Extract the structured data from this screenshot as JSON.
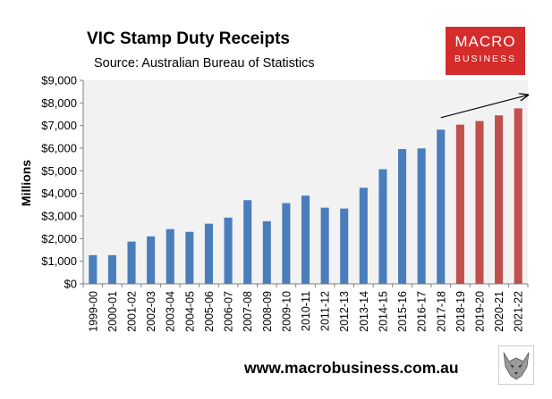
{
  "header": {
    "title": "VIC Stamp Duty Receipts",
    "source": "Source: Australian Bureau of Statistics"
  },
  "logo": {
    "line1": "MACRO",
    "line2": "BUSINESS",
    "color": "#d42b2b"
  },
  "footer": {
    "url": "www.macrobusiness.com.au"
  },
  "colors": {
    "actual": "#4a7ebb",
    "forecast": "#c0504d",
    "plot_bg": "#f2f2f2"
  },
  "chart_data": {
    "type": "bar",
    "title": "VIC Stamp Duty Receipts",
    "ylabel": "Millions",
    "xlabel": "",
    "ylim": [
      0,
      9000
    ],
    "y_tick_step": 1000,
    "y_tick_labels": [
      "$0",
      "$1,000",
      "$2,000",
      "$3,000",
      "$4,000",
      "$5,000",
      "$6,000",
      "$7,000",
      "$8,000",
      "$9,000"
    ],
    "grid": false,
    "categories": [
      "1999-00",
      "2000-01",
      "2001-02",
      "2002-03",
      "2003-04",
      "2004-05",
      "2005-06",
      "2006-07",
      "2007-08",
      "2008-09",
      "2009-10",
      "2010-11",
      "2011-12",
      "2012-13",
      "2013-14",
      "2014-15",
      "2015-16",
      "2016-17",
      "2017-18",
      "2018-19",
      "2019-20",
      "2020-21",
      "2021-22"
    ],
    "values": [
      1270,
      1270,
      1870,
      2100,
      2420,
      2300,
      2660,
      2930,
      3700,
      2770,
      3570,
      3900,
      3370,
      3330,
      4250,
      5070,
      5960,
      5990,
      6820,
      7040,
      7200,
      7450,
      7760
    ],
    "forecast_from": "2018-19",
    "annotations": [
      {
        "type": "arrow",
        "from_category": "2017-18",
        "from_value": 7350,
        "to_category": "2021-22",
        "to_value": 8350
      }
    ]
  }
}
